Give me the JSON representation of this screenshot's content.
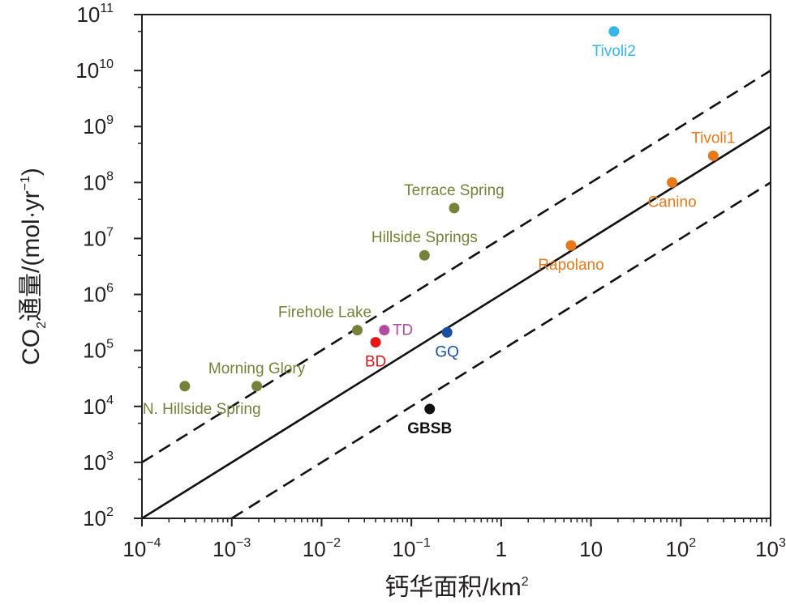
{
  "chart_data": {
    "type": "scatter",
    "x_scale": "log",
    "y_scale": "log",
    "xlim": [
      0.0001,
      1000
    ],
    "ylim": [
      100,
      100000000000
    ],
    "xlabel_text": "钙华面积/km",
    "xlabel_sup": "2",
    "ylabel_parts": {
      "a": "CO",
      "sub": "2",
      "b": "通量/(mol·yr",
      "sup": "−1",
      "c": ")"
    },
    "x_ticks": [
      {
        "v": 0.0001,
        "base": "10",
        "exp": "−4"
      },
      {
        "v": 0.001,
        "base": "10",
        "exp": "−3"
      },
      {
        "v": 0.01,
        "base": "10",
        "exp": "−2"
      },
      {
        "v": 0.1,
        "base": "10",
        "exp": "−1"
      },
      {
        "v": 1,
        "base": "1",
        "exp": ""
      },
      {
        "v": 10,
        "base": "10",
        "exp": ""
      },
      {
        "v": 100,
        "base": "10",
        "exp": "2"
      },
      {
        "v": 1000,
        "base": "10",
        "exp": "3"
      }
    ],
    "y_ticks": [
      {
        "v": 100,
        "base": "10",
        "exp": "2"
      },
      {
        "v": 1000,
        "base": "10",
        "exp": "3"
      },
      {
        "v": 10000,
        "base": "10",
        "exp": "4"
      },
      {
        "v": 100000,
        "base": "10",
        "exp": "5"
      },
      {
        "v": 1000000,
        "base": "10",
        "exp": "6"
      },
      {
        "v": 10000000,
        "base": "10",
        "exp": "7"
      },
      {
        "v": 100000000,
        "base": "10",
        "exp": "8"
      },
      {
        "v": 1000000000,
        "base": "10",
        "exp": "9"
      },
      {
        "v": 10000000000,
        "base": "10",
        "exp": "10"
      },
      {
        "v": 100000000000,
        "base": "10",
        "exp": "11"
      }
    ],
    "reference_lines": [
      {
        "style": "solid",
        "x": [
          0.0001,
          1000
        ],
        "y": [
          100,
          1000000000
        ]
      },
      {
        "style": "dashed",
        "x": [
          0.0001,
          1000
        ],
        "y": [
          1000,
          10000000000
        ]
      },
      {
        "style": "dashed",
        "x": [
          0.001,
          1000
        ],
        "y": [
          100,
          100000000
        ]
      }
    ],
    "points": [
      {
        "name": "N. Hillside Spring",
        "x": 0.0003,
        "y": 23000,
        "color": "#77813a",
        "label_anchor": "right-below",
        "bold": false
      },
      {
        "name": "Morning Glory",
        "x": 0.0019,
        "y": 23000,
        "color": "#77813a",
        "label_anchor": "above",
        "bold": false
      },
      {
        "name": "Firehole Lake",
        "x": 0.025,
        "y": 230000,
        "color": "#77813a",
        "label_anchor": "above-left",
        "bold": false
      },
      {
        "name": "Hillside Springs",
        "x": 0.14,
        "y": 5000000,
        "color": "#77813a",
        "label_anchor": "above",
        "bold": false
      },
      {
        "name": "Terrace Spring",
        "x": 0.3,
        "y": 35000000,
        "color": "#77813a",
        "label_anchor": "above",
        "bold": false
      },
      {
        "name": "TD",
        "x": 0.05,
        "y": 230000,
        "color": "#b24a9e",
        "label_anchor": "right",
        "bold": false
      },
      {
        "name": "BD",
        "x": 0.04,
        "y": 140000,
        "color": "#e8151b",
        "label_anchor": "below",
        "bold": false
      },
      {
        "name": "GQ",
        "x": 0.25,
        "y": 210000,
        "color": "#1b4fa1",
        "label_anchor": "below",
        "bold": false
      },
      {
        "name": "GBSB",
        "x": 0.16,
        "y": 9000,
        "color": "#111111",
        "label_anchor": "below",
        "bold": true
      },
      {
        "name": "Rapolano",
        "x": 6,
        "y": 7500000,
        "color": "#e8791b",
        "label_anchor": "below",
        "bold": false
      },
      {
        "name": "Canino",
        "x": 80,
        "y": 100000000,
        "color": "#e8791b",
        "label_anchor": "below",
        "bold": false
      },
      {
        "name": "Tivoli1",
        "x": 230,
        "y": 300000000,
        "color": "#e8791b",
        "label_anchor": "above",
        "bold": false
      },
      {
        "name": "Tivoli2",
        "x": 18,
        "y": 50000000000,
        "color": "#36b6e8",
        "label_anchor": "below",
        "bold": false
      }
    ]
  }
}
